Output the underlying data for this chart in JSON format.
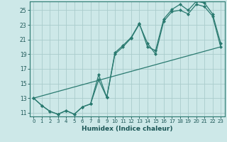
{
  "xlabel": "Humidex (Indice chaleur)",
  "bg_color": "#cde8e8",
  "grid_color": "#aacccc",
  "line_color": "#2a7a70",
  "marker_color": "#2a7a70",
  "spine_color": "#2a7a70",
  "text_color": "#1a5555",
  "xlim": [
    -0.5,
    23.5
  ],
  "ylim": [
    10.5,
    26.2
  ],
  "xticks": [
    0,
    1,
    2,
    3,
    4,
    5,
    6,
    7,
    8,
    9,
    10,
    11,
    12,
    13,
    14,
    15,
    16,
    17,
    18,
    19,
    20,
    21,
    22,
    23
  ],
  "yticks": [
    11,
    13,
    15,
    17,
    19,
    21,
    23,
    25
  ],
  "series1_x": [
    0,
    1,
    2,
    3,
    4,
    5,
    6,
    7,
    8,
    9,
    10,
    11,
    12,
    13,
    14,
    15,
    16,
    17,
    18,
    19,
    20,
    21,
    22,
    23
  ],
  "series1_y": [
    13,
    12,
    11.2,
    10.8,
    11.3,
    10.8,
    11.8,
    12.2,
    15.5,
    13.1,
    19.0,
    20.0,
    21.2,
    23.1,
    20.5,
    19.0,
    23.5,
    24.8,
    25.0,
    24.5,
    25.8,
    25.5,
    24.2,
    20.0
  ],
  "series2_x": [
    0,
    1,
    2,
    3,
    4,
    5,
    6,
    7,
    8,
    9,
    10,
    11,
    12,
    13,
    14,
    15,
    16,
    17,
    18,
    19,
    20,
    21,
    22,
    23
  ],
  "series2_y": [
    13,
    12,
    11.2,
    10.8,
    11.3,
    10.8,
    11.8,
    12.2,
    16.2,
    13.1,
    19.2,
    20.2,
    21.3,
    23.2,
    20.0,
    19.5,
    23.8,
    25.1,
    25.8,
    25.0,
    26.2,
    26.0,
    24.5,
    20.5
  ],
  "series3_x": [
    0,
    23
  ],
  "series3_y": [
    13,
    20.0
  ]
}
